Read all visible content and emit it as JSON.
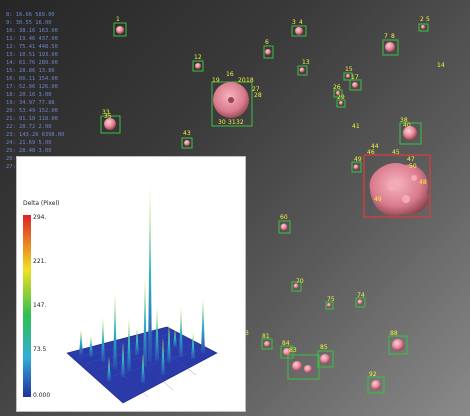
{
  "table_rows": [
    "8:   16.66   589.00",
    "9:   30.55   16.00",
    "10:  38.16   163.00",
    "11:  19.46   437.00",
    "12:  75.41   448.50",
    "13:  10.51   193.00",
    "14:  61.76   289.00",
    "15:  28.86   13.86",
    "16:  66.11   154.00",
    "17:  52.96   126.00",
    "18:  20.16   3.00",
    "19:  34.97   77.88",
    "20:  53.49   152.00",
    "21:  91.18   118.00",
    "22:  28.72   2.00",
    "23:  143.26  6398.00",
    "24:  21.69   5.00",
    "25:  28.48   3.00",
    "26:  23.68   18.00",
    "27:  25.04   14.00"
  ],
  "object_labels": [
    "1",
    "2",
    "3",
    "4",
    "5",
    "6",
    "7",
    "8",
    "9",
    "12",
    "13",
    "14",
    "15",
    "16",
    "17",
    "18",
    "19",
    "20",
    "21",
    "22",
    "23",
    "24",
    "25",
    "26",
    "27",
    "28",
    "29",
    "30",
    "31",
    "32",
    "33",
    "34",
    "35",
    "36",
    "37",
    "38",
    "39",
    "40",
    "41",
    "42",
    "43",
    "44",
    "45",
    "46",
    "47",
    "48",
    "49",
    "50",
    "51",
    "52",
    "53",
    "54",
    "55",
    "56",
    "58",
    "59",
    "60",
    "61",
    "62",
    "63",
    "64",
    "65",
    "66",
    "67",
    "68",
    "69",
    "70",
    "71",
    "72",
    "73",
    "74",
    "75",
    "76",
    "77",
    "78",
    "79",
    "80",
    "81",
    "82",
    "83",
    "84",
    "85",
    "86",
    "87",
    "88",
    "89",
    "90",
    "91",
    "92",
    "93",
    "94",
    "95",
    "96",
    "97",
    "98",
    "99"
  ],
  "plot": {
    "title": "Delta (Pixel)",
    "ticks": [
      "294.",
      "221.",
      "147.",
      "73.5",
      "0.000"
    ]
  },
  "colors": {
    "box": "#3fbf3f",
    "box_selected": "#e33b3b",
    "label": "#f2f23a",
    "cell": "#e88a9a"
  }
}
